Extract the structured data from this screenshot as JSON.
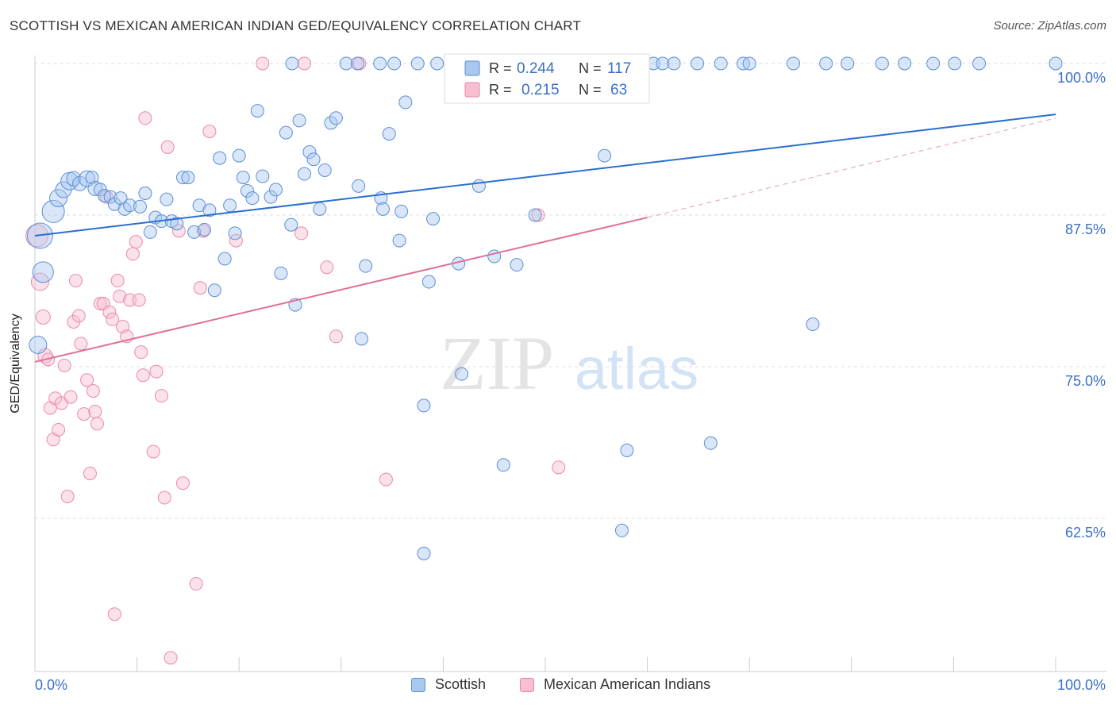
{
  "header": {
    "title": "SCOTTISH VS MEXICAN AMERICAN INDIAN GED/EQUIVALENCY CORRELATION CHART",
    "source": "Source: ZipAtlas.com"
  },
  "watermark": {
    "zip": "ZIP",
    "atlas": "atlas"
  },
  "legend": {
    "r_label": "R =",
    "n_label": "N =",
    "series": [
      {
        "name": "Scottish",
        "r": "0.244",
        "n": "117"
      },
      {
        "name": "Mexican American Indians",
        "r": "0.215",
        "n": "63"
      }
    ]
  },
  "chart_data": {
    "type": "scatter",
    "title": "SCOTTISH VS MEXICAN AMERICAN INDIAN GED/EQUIVALENCY CORRELATION CHART",
    "xlabel": "",
    "ylabel": "GED/Equivalency",
    "xlim": [
      0,
      100
    ],
    "ylim": [
      50.4,
      101.5
    ],
    "x_tick_labels": [
      "0.0%",
      "100.0%"
    ],
    "y_ticks": [
      62.5,
      75.0,
      87.5,
      100.0
    ],
    "y_tick_labels": [
      "62.5%",
      "75.0%",
      "87.5%",
      "100.0%"
    ],
    "grid": "horizontal dashed",
    "legend_position": "top-center",
    "colors": {
      "scottish_fill": "#a9c8f0",
      "scottish_stroke": "#5b8fd6",
      "scottish_line": "#2a6fd0",
      "mexican_fill": "#f7bfd0",
      "mexican_stroke": "#e98aa8",
      "mexican_line": "#e0709a",
      "value_text": "#3a6fc8",
      "grid": "#dddddd"
    },
    "series": [
      {
        "name": "Scottish",
        "trend": {
          "x": [
            0,
            100
          ],
          "y": [
            85.8,
            95.8
          ]
        },
        "points": [
          [
            0.5,
            85.8,
            16
          ],
          [
            0.8,
            82.8,
            13
          ],
          [
            0.3,
            76.8,
            11
          ],
          [
            1.8,
            87.8,
            14
          ],
          [
            2.3,
            88.9,
            11
          ],
          [
            2.8,
            89.6,
            10
          ],
          [
            3.4,
            90.3,
            11
          ],
          [
            3.8,
            90.5,
            9
          ],
          [
            4.4,
            90.1,
            9
          ],
          [
            5.1,
            90.5,
            10
          ],
          [
            5.6,
            90.6,
            8
          ],
          [
            5.9,
            89.7,
            9
          ],
          [
            6.4,
            89.6,
            8
          ],
          [
            6.8,
            89.1,
            8
          ],
          [
            7.4,
            89.0,
            8
          ],
          [
            7.8,
            88.4,
            8
          ],
          [
            8.4,
            88.9,
            8
          ],
          [
            8.8,
            88.0,
            8
          ],
          [
            9.3,
            88.3,
            8
          ],
          [
            10.3,
            88.2,
            8
          ],
          [
            10.8,
            89.3,
            8
          ],
          [
            11.3,
            86.1,
            8
          ],
          [
            11.8,
            87.3,
            8
          ],
          [
            12.4,
            87.0,
            8
          ],
          [
            12.9,
            88.8,
            8
          ],
          [
            13.4,
            87.0,
            8
          ],
          [
            13.9,
            86.8,
            8
          ],
          [
            14.5,
            90.6,
            8
          ],
          [
            15.0,
            90.6,
            8
          ],
          [
            15.6,
            86.1,
            8
          ],
          [
            16.1,
            88.3,
            8
          ],
          [
            16.6,
            86.3,
            8
          ],
          [
            17.1,
            87.9,
            8
          ],
          [
            17.6,
            81.3,
            8
          ],
          [
            18.1,
            92.2,
            8
          ],
          [
            18.6,
            83.9,
            8
          ],
          [
            19.1,
            88.3,
            8
          ],
          [
            19.6,
            86.0,
            8
          ],
          [
            20.0,
            92.4,
            8
          ],
          [
            20.4,
            90.6,
            8
          ],
          [
            20.8,
            89.5,
            8
          ],
          [
            21.3,
            88.9,
            8
          ],
          [
            21.8,
            96.1,
            8
          ],
          [
            22.3,
            90.7,
            8
          ],
          [
            23.1,
            89.0,
            8
          ],
          [
            23.6,
            89.6,
            8
          ],
          [
            24.1,
            82.7,
            8
          ],
          [
            24.6,
            94.3,
            8
          ],
          [
            25.1,
            86.7,
            8
          ],
          [
            25.5,
            80.1,
            8
          ],
          [
            25.9,
            95.3,
            8
          ],
          [
            26.4,
            90.9,
            8
          ],
          [
            26.9,
            92.7,
            8
          ],
          [
            27.3,
            92.1,
            8
          ],
          [
            27.9,
            88.0,
            8
          ],
          [
            28.4,
            91.2,
            8
          ],
          [
            29.0,
            95.1,
            8
          ],
          [
            29.5,
            95.5,
            8
          ],
          [
            30.5,
            100.0,
            8
          ],
          [
            31.6,
            100.0,
            8
          ],
          [
            31.7,
            89.9,
            8
          ],
          [
            32.0,
            77.3,
            8
          ],
          [
            32.4,
            83.3,
            8
          ],
          [
            33.8,
            100.0,
            8
          ],
          [
            33.9,
            88.9,
            8
          ],
          [
            34.1,
            88.0,
            8
          ],
          [
            34.7,
            94.2,
            8
          ],
          [
            35.2,
            100.0,
            8
          ],
          [
            35.7,
            85.4,
            8
          ],
          [
            35.9,
            87.8,
            8
          ],
          [
            36.3,
            96.8,
            8
          ],
          [
            37.5,
            100.0,
            8
          ],
          [
            38.1,
            71.8,
            8
          ],
          [
            38.1,
            59.6,
            8
          ],
          [
            38.6,
            82.0,
            8
          ],
          [
            39.0,
            87.2,
            8
          ],
          [
            39.4,
            100.0,
            8
          ],
          [
            41.5,
            83.5,
            8
          ],
          [
            41.8,
            74.4,
            8
          ],
          [
            42.5,
            100.0,
            8
          ],
          [
            43.5,
            89.9,
            8
          ],
          [
            44.2,
            100.0,
            8
          ],
          [
            45.0,
            84.1,
            8
          ],
          [
            45.8,
            100.0,
            8
          ],
          [
            45.9,
            66.9,
            8
          ],
          [
            47.2,
            83.4,
            8
          ],
          [
            48.0,
            100.0,
            8
          ],
          [
            49.0,
            87.5,
            8
          ],
          [
            49.8,
            100.0,
            8
          ],
          [
            52.6,
            100.0,
            8
          ],
          [
            53.3,
            100.0,
            8
          ],
          [
            55.8,
            92.4,
            8
          ],
          [
            56.8,
            100.0,
            8
          ],
          [
            57.5,
            100.0,
            8
          ],
          [
            58.3,
            100.0,
            8
          ],
          [
            58.0,
            68.1,
            8
          ],
          [
            59.1,
            100.0,
            8
          ],
          [
            60.6,
            100.0,
            8
          ],
          [
            61.5,
            100.0,
            8
          ],
          [
            62.6,
            100.0,
            8
          ],
          [
            64.9,
            100.0,
            8
          ],
          [
            67.2,
            100.0,
            8
          ],
          [
            69.4,
            100.0,
            8
          ],
          [
            70.0,
            100.0,
            8
          ],
          [
            76.2,
            78.5,
            8
          ],
          [
            74.3,
            100.0,
            8
          ],
          [
            77.5,
            100.0,
            8
          ],
          [
            79.6,
            100.0,
            8
          ],
          [
            83.0,
            100.0,
            8
          ],
          [
            85.2,
            100.0,
            8
          ],
          [
            88.0,
            100.0,
            8
          ],
          [
            90.1,
            100.0,
            8
          ],
          [
            92.5,
            100.0,
            8
          ],
          [
            100.0,
            100.0,
            8
          ],
          [
            57.5,
            61.5,
            8
          ],
          [
            66.2,
            68.7,
            8
          ],
          [
            25.2,
            100.0,
            8
          ]
        ]
      },
      {
        "name": "Mexican American Indians",
        "trend": {
          "x": [
            0,
            60
          ],
          "y": [
            75.4,
            87.3
          ]
        },
        "trend_extension": {
          "x": [
            60,
            100
          ],
          "y": [
            87.3,
            95.5
          ]
        },
        "points": [
          [
            0.2,
            85.8,
            14
          ],
          [
            0.5,
            82.0,
            11
          ],
          [
            0.8,
            79.1,
            9
          ],
          [
            1.0,
            75.9,
            9
          ],
          [
            1.3,
            75.6,
            8
          ],
          [
            1.5,
            71.6,
            8
          ],
          [
            1.8,
            69.0,
            8
          ],
          [
            2.0,
            72.4,
            8
          ],
          [
            2.3,
            69.8,
            8
          ],
          [
            2.6,
            72.0,
            8
          ],
          [
            2.9,
            75.1,
            8
          ],
          [
            3.2,
            64.3,
            8
          ],
          [
            3.5,
            72.5,
            8
          ],
          [
            3.8,
            78.7,
            8
          ],
          [
            4.0,
            82.1,
            8
          ],
          [
            4.3,
            79.2,
            8
          ],
          [
            4.5,
            76.9,
            8
          ],
          [
            4.8,
            71.1,
            8
          ],
          [
            5.1,
            73.9,
            8
          ],
          [
            5.4,
            66.2,
            8
          ],
          [
            5.7,
            73.0,
            8
          ],
          [
            5.9,
            71.3,
            8
          ],
          [
            6.1,
            70.3,
            8
          ],
          [
            6.4,
            80.2,
            8
          ],
          [
            6.7,
            80.2,
            8
          ],
          [
            7.0,
            89.0,
            8
          ],
          [
            7.3,
            79.5,
            8
          ],
          [
            7.6,
            78.9,
            8
          ],
          [
            7.8,
            54.6,
            8
          ],
          [
            8.1,
            82.1,
            8
          ],
          [
            8.3,
            80.8,
            8
          ],
          [
            8.6,
            78.3,
            8
          ],
          [
            9.0,
            77.5,
            8
          ],
          [
            9.3,
            80.5,
            8
          ],
          [
            9.6,
            84.3,
            8
          ],
          [
            9.9,
            85.3,
            8
          ],
          [
            10.2,
            80.5,
            8
          ],
          [
            10.4,
            76.2,
            8
          ],
          [
            10.6,
            74.3,
            8
          ],
          [
            10.8,
            95.5,
            8
          ],
          [
            11.6,
            68.0,
            8
          ],
          [
            11.9,
            74.6,
            8
          ],
          [
            12.4,
            72.6,
            8
          ],
          [
            12.7,
            64.2,
            8
          ],
          [
            13.0,
            93.1,
            8
          ],
          [
            13.3,
            51.0,
            8
          ],
          [
            14.1,
            86.2,
            8
          ],
          [
            14.5,
            65.4,
            8
          ],
          [
            15.8,
            57.1,
            8
          ],
          [
            16.2,
            81.5,
            8
          ],
          [
            16.5,
            86.2,
            8
          ],
          [
            17.1,
            94.4,
            8
          ],
          [
            19.7,
            85.4,
            8
          ],
          [
            22.3,
            100.0,
            8
          ],
          [
            26.1,
            86.0,
            8
          ],
          [
            26.4,
            100.0,
            8
          ],
          [
            28.6,
            83.2,
            8
          ],
          [
            29.5,
            77.5,
            8
          ],
          [
            31.8,
            100.0,
            8
          ],
          [
            34.4,
            65.7,
            8
          ],
          [
            48.0,
            100.0,
            8
          ],
          [
            49.3,
            87.5,
            8
          ],
          [
            51.3,
            66.7,
            8
          ]
        ]
      }
    ]
  }
}
